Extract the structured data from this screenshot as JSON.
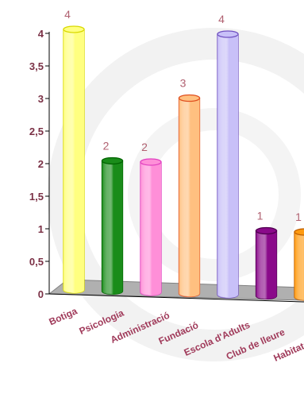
{
  "chart_data": {
    "type": "bar",
    "categories": [
      "Botiga",
      "Psicologia",
      "Administració",
      "Fundació",
      "Escola d'Adults",
      "Club de lleure",
      "Habitatge"
    ],
    "values": [
      4,
      2,
      2,
      3,
      4,
      1,
      1
    ],
    "data_labels": [
      "4",
      "2",
      "2",
      "3",
      "4",
      "1",
      "1"
    ],
    "yticks": [
      "0",
      "0,5",
      "1",
      "1,5",
      "2",
      "2,5",
      "3",
      "3,5",
      "4"
    ],
    "ylim": [
      0,
      4
    ],
    "title": "",
    "xlabel": "",
    "ylabel": "",
    "grid": false,
    "colors": [
      {
        "fill": "#ffff80",
        "stroke": "#d8d800"
      },
      {
        "fill": "#1a8c1a",
        "stroke": "#006400"
      },
      {
        "fill": "#ff8fd8",
        "stroke": "#e040c0"
      },
      {
        "fill": "#ffc080",
        "stroke": "#e05020"
      },
      {
        "fill": "#c8c0f8",
        "stroke": "#7050c0"
      },
      {
        "fill": "#8a0a8a",
        "stroke": "#500050"
      },
      {
        "fill": "#ff9a10",
        "stroke": "#c06000"
      }
    ],
    "axis_color": "#000000",
    "label_color": "#a03a5a",
    "floor_color": "#b0b0b0"
  }
}
